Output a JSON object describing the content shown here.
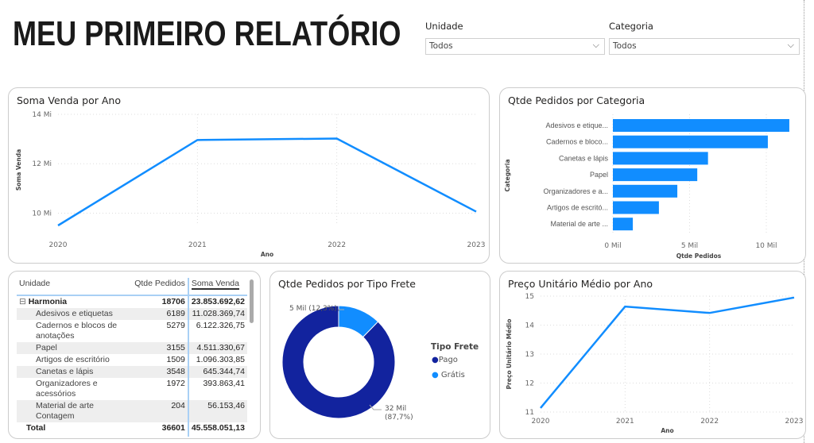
{
  "page_title": "MEU PRIMEIRO RELATÓRIO",
  "slicers": [
    {
      "label": "Unidade",
      "value": "Todos"
    },
    {
      "label": "Categoria",
      "value": "Todos"
    }
  ],
  "line1": {
    "title": "Soma Venda por Ano",
    "xlabel": "Ano",
    "ylabel": "Soma Venda",
    "yticks": [
      "14 Mi",
      "12 Mi",
      "10 Mi"
    ],
    "color": "#118DFF",
    "chart_data": {
      "type": "line",
      "x": [
        "2020",
        "2021",
        "2022",
        "2023"
      ],
      "values": [
        9.5,
        12.96,
        13.02,
        10.06
      ],
      "units": "Mi",
      "ylim": [
        9.5,
        14
      ]
    }
  },
  "bar": {
    "title": "Qtde Pedidos por Categoria",
    "xlabel": "Qtde Pedidos",
    "ylabel": "Categoria",
    "xticks": [
      "0 Mil",
      "5 Mil",
      "10 Mil"
    ],
    "color": "#118DFF",
    "chart_data": {
      "type": "bar",
      "categories": [
        "Adesivos e etique...",
        "Cadernos e bloco...",
        "Canetas e lápis",
        "Papel",
        "Organizadores e a...",
        "Artigos de escritó...",
        "Material de arte ..."
      ],
      "values": [
        11.5,
        10.1,
        6.2,
        5.5,
        4.2,
        3.0,
        1.3
      ],
      "units": "Mil",
      "xlim": [
        0,
        12
      ]
    }
  },
  "table": {
    "headers": [
      "Unidade",
      "Qtde Pedidos",
      "Soma Venda"
    ],
    "group": {
      "name": "Harmonia",
      "qtde": "18706",
      "soma": "23.853.692,62"
    },
    "rows": [
      [
        "Adesivos e etiquetas",
        "6189",
        "11.028.369,74"
      ],
      [
        "Cadernos e blocos de anotações",
        "5279",
        "6.122.326,75"
      ],
      [
        "Papel",
        "3155",
        "4.511.330,67"
      ],
      [
        "Artigos de escritório",
        "1509",
        "1.096.303,85"
      ],
      [
        "Canetas e lápis",
        "3548",
        "645.344,74"
      ],
      [
        "Organizadores e acessórios",
        "1972",
        "393.863,41"
      ],
      [
        "Material de arte Contagem",
        "204",
        "56.153,46"
      ]
    ],
    "total": {
      "label": "Total",
      "qtde": "36601",
      "soma": "45.558.051,13"
    }
  },
  "donut": {
    "title": "Qtde Pedidos por Tipo Frete",
    "legend_title": "Tipo Frete",
    "chart_data": {
      "type": "pie",
      "slices": [
        {
          "name": "Pago",
          "value": 87.7,
          "label": "32 Mil (87,7%)",
          "color": "#12239E"
        },
        {
          "name": "Grátis",
          "value": 12.3,
          "label": "5 Mil (12,3%)",
          "color": "#118DFF"
        }
      ]
    },
    "label_pago_1": "32 Mil",
    "label_pago_2": "(87,7%)",
    "label_gratis": "5 Mil (12,3%)"
  },
  "line2": {
    "title": "Preço Unitário Médio por Ano",
    "xlabel": "Ano",
    "ylabel": "Preço Unitário Médio",
    "yticks": [
      "15",
      "14",
      "13",
      "12",
      "11"
    ],
    "color": "#118DFF",
    "chart_data": {
      "type": "line",
      "x": [
        "2020",
        "2021",
        "2022",
        "2023"
      ],
      "values": [
        11.14,
        14.64,
        14.42,
        14.95
      ],
      "ylim": [
        11,
        15
      ]
    }
  }
}
